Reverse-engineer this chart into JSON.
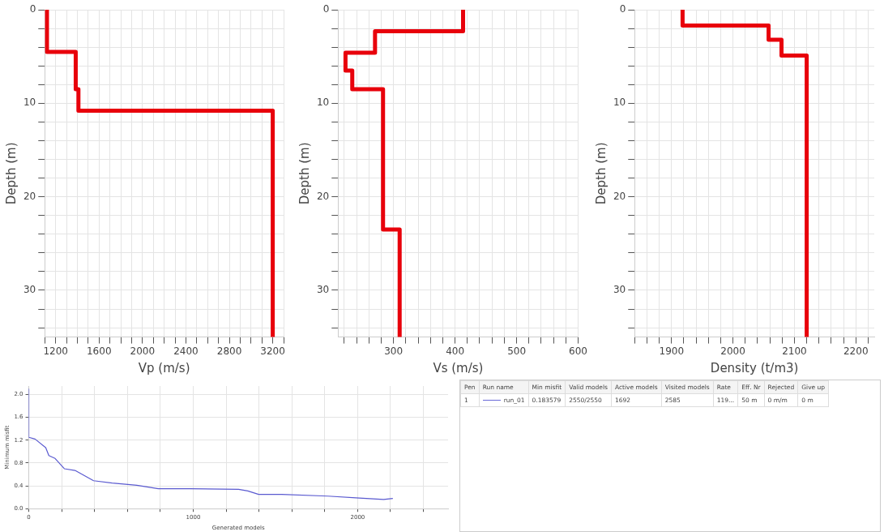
{
  "chart_data": [
    {
      "type": "line",
      "xlabel": "Vp (m/s)",
      "ylabel": "Depth (m)",
      "grid": true,
      "marker": "none",
      "xlim": [
        1100,
        3300
      ],
      "ylim": [
        35,
        0
      ],
      "xticks": [
        {
          "value": 1100,
          "label": null
        },
        1200,
        {
          "value": 1300,
          "label": null
        },
        {
          "value": 1400,
          "label": null
        },
        {
          "value": 1500,
          "label": null
        },
        1600,
        {
          "value": 1700,
          "label": null
        },
        {
          "value": 1800,
          "label": null
        },
        {
          "value": 1900,
          "label": null
        },
        2000,
        {
          "value": 2100,
          "label": null
        },
        {
          "value": 2200,
          "label": null
        },
        {
          "value": 2300,
          "label": null
        },
        2400,
        {
          "value": 2500,
          "label": null
        },
        {
          "value": 2600,
          "label": null
        },
        {
          "value": 2700,
          "label": null
        },
        2800,
        {
          "value": 2900,
          "label": null
        },
        {
          "value": 3000,
          "label": null
        },
        {
          "value": 3100,
          "label": null
        },
        3200,
        {
          "value": 3300,
          "label": null
        }
      ],
      "yticks": [
        0,
        {
          "value": 2,
          "label": null
        },
        {
          "value": 4,
          "label": null
        },
        {
          "value": 6,
          "label": null
        },
        {
          "value": 8,
          "label": null
        },
        10,
        {
          "value": 12,
          "label": null
        },
        {
          "value": 14,
          "label": null
        },
        {
          "value": 16,
          "label": null
        },
        {
          "value": 18,
          "label": null
        },
        20,
        {
          "value": 22,
          "label": null
        },
        {
          "value": 24,
          "label": null
        },
        {
          "value": 26,
          "label": null
        },
        {
          "value": 28,
          "label": null
        },
        30,
        {
          "value": 32,
          "label": null
        },
        {
          "value": 34,
          "label": null
        }
      ],
      "series": [
        {
          "color": "#e8000b",
          "x": [
            1120,
            1120,
            1385,
            1385,
            1410,
            1410,
            3200,
            3200
          ],
          "values": [
            0,
            4.5,
            4.5,
            8.5,
            8.5,
            10.8,
            10.8,
            35
          ]
        }
      ]
    },
    {
      "type": "line",
      "xlabel": "Vs (m/s)",
      "ylabel": "Depth (m)",
      "grid": true,
      "marker": "none",
      "xlim": [
        210,
        600
      ],
      "ylim": [
        35,
        0
      ],
      "xticks": [
        {
          "value": 220,
          "label": null
        },
        {
          "value": 240,
          "label": null
        },
        {
          "value": 260,
          "label": null
        },
        {
          "value": 280,
          "label": null
        },
        300,
        {
          "value": 320,
          "label": null
        },
        {
          "value": 340,
          "label": null
        },
        {
          "value": 360,
          "label": null
        },
        {
          "value": 380,
          "label": null
        },
        400,
        {
          "value": 420,
          "label": null
        },
        {
          "value": 440,
          "label": null
        },
        {
          "value": 460,
          "label": null
        },
        {
          "value": 480,
          "label": null
        },
        500,
        {
          "value": 520,
          "label": null
        },
        {
          "value": 540,
          "label": null
        },
        {
          "value": 560,
          "label": null
        },
        {
          "value": 580,
          "label": null
        },
        600
      ],
      "yticks": [
        0,
        {
          "value": 2,
          "label": null
        },
        {
          "value": 4,
          "label": null
        },
        {
          "value": 6,
          "label": null
        },
        {
          "value": 8,
          "label": null
        },
        10,
        {
          "value": 12,
          "label": null
        },
        {
          "value": 14,
          "label": null
        },
        {
          "value": 16,
          "label": null
        },
        {
          "value": 18,
          "label": null
        },
        20,
        {
          "value": 22,
          "label": null
        },
        {
          "value": 24,
          "label": null
        },
        {
          "value": 26,
          "label": null
        },
        {
          "value": 28,
          "label": null
        },
        30,
        {
          "value": 32,
          "label": null
        },
        {
          "value": 34,
          "label": null
        }
      ],
      "series": [
        {
          "color": "#e8000b",
          "x": [
            413,
            413,
            270,
            270,
            222,
            222,
            233,
            233,
            283,
            283,
            310,
            310
          ],
          "values": [
            0,
            2.3,
            2.3,
            4.6,
            4.6,
            6.5,
            6.5,
            8.5,
            8.5,
            23.5,
            23.5,
            35
          ]
        }
      ]
    },
    {
      "type": "line",
      "xlabel": "Density (t/m3)",
      "ylabel": "Depth (m)",
      "grid": true,
      "marker": "none",
      "xlim": [
        1840,
        2230
      ],
      "ylim": [
        35,
        0
      ],
      "xticks": [
        {
          "value": 1840,
          "label": null
        },
        {
          "value": 1860,
          "label": null
        },
        {
          "value": 1880,
          "label": null
        },
        1900,
        {
          "value": 1920,
          "label": null
        },
        {
          "value": 1940,
          "label": null
        },
        {
          "value": 1960,
          "label": null
        },
        {
          "value": 1980,
          "label": null
        },
        2000,
        {
          "value": 2020,
          "label": null
        },
        {
          "value": 2040,
          "label": null
        },
        {
          "value": 2060,
          "label": null
        },
        {
          "value": 2080,
          "label": null
        },
        2100,
        {
          "value": 2120,
          "label": null
        },
        {
          "value": 2140,
          "label": null
        },
        {
          "value": 2160,
          "label": null
        },
        {
          "value": 2180,
          "label": null
        },
        2200,
        {
          "value": 2220,
          "label": null
        }
      ],
      "yticks": [
        0,
        {
          "value": 2,
          "label": null
        },
        {
          "value": 4,
          "label": null
        },
        {
          "value": 6,
          "label": null
        },
        {
          "value": 8,
          "label": null
        },
        10,
        {
          "value": 12,
          "label": null
        },
        {
          "value": 14,
          "label": null
        },
        {
          "value": 16,
          "label": null
        },
        {
          "value": 18,
          "label": null
        },
        20,
        {
          "value": 22,
          "label": null
        },
        {
          "value": 24,
          "label": null
        },
        {
          "value": 26,
          "label": null
        },
        {
          "value": 28,
          "label": null
        },
        30,
        {
          "value": 32,
          "label": null
        },
        {
          "value": 34,
          "label": null
        }
      ],
      "series": [
        {
          "color": "#e8000b",
          "x": [
            1918,
            1918,
            2058,
            2058,
            2079,
            2079,
            2120,
            2120
          ],
          "values": [
            0,
            1.7,
            1.7,
            3.2,
            3.2,
            4.9,
            4.9,
            35
          ]
        }
      ]
    },
    {
      "type": "line",
      "xlabel": "Generated models",
      "ylabel": "Minimum misfit",
      "grid": true,
      "marker": "none",
      "xlim": [
        0,
        2550
      ],
      "ylim": [
        0,
        2.15
      ],
      "xticks": [
        0,
        {
          "value": 200,
          "label": null
        },
        {
          "value": 400,
          "label": null
        },
        {
          "value": 600,
          "label": null
        },
        {
          "value": 800,
          "label": null
        },
        1000,
        {
          "value": 1200,
          "label": null
        },
        {
          "value": 1400,
          "label": null
        },
        {
          "value": 1600,
          "label": null
        },
        {
          "value": 1800,
          "label": null
        },
        2000,
        {
          "value": 2200,
          "label": null
        },
        {
          "value": 2400,
          "label": null
        }
      ],
      "yticks": [
        {
          "value": 0,
          "label": "0.0"
        },
        0.4,
        0.8,
        1.2,
        1.6,
        {
          "value": 2,
          "label": "2.0"
        }
      ],
      "series": [
        {
          "color": "#5a5ad0",
          "x": [
            0,
            0,
            38,
            103,
            122,
            160,
            216,
            281,
            394,
            507,
            657,
            788,
            976,
            1276,
            1332,
            1398,
            1538,
            1820,
            1989,
            2158,
            2214
          ],
          "values": [
            2.1,
            1.25,
            1.22,
            1.07,
            0.93,
            0.88,
            0.7,
            0.67,
            0.49,
            0.45,
            0.41,
            0.35,
            0.35,
            0.34,
            0.31,
            0.25,
            0.25,
            0.22,
            0.19,
            0.16,
            0.18
          ]
        }
      ]
    },
    {
      "type": "other",
      "categories": [
        "Pen",
        "Run name",
        "Min misfit",
        "Valid models",
        "Active models",
        "Visited models",
        "Rate",
        "Eff. Nr",
        "Rejected",
        "Give up"
      ],
      "annotations": [
        "1",
        "run_01",
        "0.183579",
        "2550/2550",
        "1692",
        "2585",
        "119...",
        "50 m",
        "0 m/m",
        "0 m"
      ]
    }
  ]
}
